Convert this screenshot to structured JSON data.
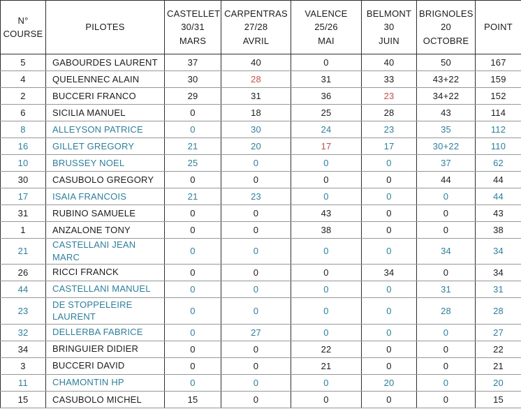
{
  "table": {
    "title": "Championship standings table",
    "columns": [
      {
        "id": "course",
        "label": "N°\nCOURSE"
      },
      {
        "id": "pilotes",
        "label": "PILOTES"
      },
      {
        "id": "castellet",
        "label": "CASTELLET\n30/31\nMARS"
      },
      {
        "id": "carpentras",
        "label": "CARPENTRAS\n27/28\nAVRIL"
      },
      {
        "id": "valence",
        "label": "VALENCE\n25/26\nMAI"
      },
      {
        "id": "belmont",
        "label": "BELMONT\n30\nJUIN"
      },
      {
        "id": "brignoles",
        "label": "BRIGNOLES\n20\nOCTOBRE"
      },
      {
        "id": "point",
        "label": "POINT"
      }
    ],
    "rows": [
      {
        "course": "5",
        "pilot": "GABOURDES LAURENT",
        "scores": [
          "37",
          "40",
          "0",
          "40",
          "50"
        ],
        "point": "167",
        "highlight": false,
        "red_cols": [],
        "tall": false
      },
      {
        "course": "4",
        "pilot": "QUELENNEC ALAIN",
        "scores": [
          "30",
          "28",
          "31",
          "33",
          "43+22"
        ],
        "point": "159",
        "highlight": false,
        "red_cols": [
          1
        ],
        "tall": false
      },
      {
        "course": "2",
        "pilot": "BUCCERI FRANCO",
        "scores": [
          "29",
          "31",
          "36",
          "23",
          "34+22"
        ],
        "point": "152",
        "highlight": false,
        "red_cols": [
          3
        ],
        "tall": false
      },
      {
        "course": "6",
        "pilot": "SICILIA MANUEL",
        "scores": [
          "0",
          "18",
          "25",
          "28",
          "43"
        ],
        "point": "114",
        "highlight": false,
        "red_cols": [],
        "tall": false
      },
      {
        "course": "8",
        "pilot": "ALLEYSON PATRICE",
        "scores": [
          "0",
          "30",
          "24",
          "23",
          "35"
        ],
        "point": "112",
        "highlight": true,
        "red_cols": [],
        "tall": false
      },
      {
        "course": "16",
        "pilot": "GILLET GREGORY",
        "scores": [
          "21",
          "20",
          "17",
          "17",
          "30+22"
        ],
        "point": "110",
        "highlight": true,
        "red_cols": [
          2
        ],
        "tall": false
      },
      {
        "course": "10",
        "pilot": "BRUSSEY NOEL",
        "scores": [
          "25",
          "0",
          "0",
          "0",
          "37"
        ],
        "point": "62",
        "highlight": true,
        "red_cols": [],
        "tall": false
      },
      {
        "course": "30",
        "pilot": "CASUBOLO GREGORY",
        "scores": [
          "0",
          "0",
          "0",
          "0",
          "44"
        ],
        "point": "44",
        "highlight": false,
        "red_cols": [],
        "tall": false
      },
      {
        "course": "17",
        "pilot": "ISAIA FRANCOIS",
        "scores": [
          "21",
          "23",
          "0",
          "0",
          "0"
        ],
        "point": "44",
        "highlight": true,
        "red_cols": [],
        "tall": false
      },
      {
        "course": "31",
        "pilot": "RUBINO SAMUELE",
        "scores": [
          "0",
          "0",
          "43",
          "0",
          "0"
        ],
        "point": "43",
        "highlight": false,
        "red_cols": [],
        "tall": false
      },
      {
        "course": "1",
        "pilot": "ANZALONE TONY",
        "scores": [
          "0",
          "0",
          "38",
          "0",
          "0"
        ],
        "point": "38",
        "highlight": false,
        "red_cols": [],
        "tall": false
      },
      {
        "course": "21",
        "pilot": "CASTELLANI JEAN MARC",
        "scores": [
          "0",
          "0",
          "0",
          "0",
          "34"
        ],
        "point": "34",
        "highlight": true,
        "red_cols": [],
        "tall": false
      },
      {
        "course": "26",
        "pilot": "RICCI FRANCK",
        "scores": [
          "0",
          "0",
          "0",
          "34",
          "0"
        ],
        "point": "34",
        "highlight": false,
        "red_cols": [],
        "tall": false
      },
      {
        "course": "44",
        "pilot": "CASTELLANI MANUEL",
        "scores": [
          "0",
          "0",
          "0",
          "0",
          "31"
        ],
        "point": "31",
        "highlight": true,
        "red_cols": [],
        "tall": false
      },
      {
        "course": "23",
        "pilot": "DE STOPPELEIRE\nLAURENT",
        "scores": [
          "0",
          "0",
          "0",
          "0",
          "28"
        ],
        "point": "28",
        "highlight": true,
        "red_cols": [],
        "tall": true
      },
      {
        "course": "32",
        "pilot": "DELLERBA FABRICE",
        "scores": [
          "0",
          "27",
          "0",
          "0",
          "0"
        ],
        "point": "27",
        "highlight": true,
        "red_cols": [],
        "tall": false
      },
      {
        "course": "34",
        "pilot": "BRINGUIER DIDIER",
        "scores": [
          "0",
          "0",
          "22",
          "0",
          "0"
        ],
        "point": "22",
        "highlight": false,
        "red_cols": [],
        "tall": false
      },
      {
        "course": "3",
        "pilot": "BUCCERI DAVID",
        "scores": [
          "0",
          "0",
          "21",
          "0",
          "0"
        ],
        "point": "21",
        "highlight": false,
        "red_cols": [],
        "tall": false
      },
      {
        "course": "11",
        "pilot": "CHAMONTIN HP",
        "scores": [
          "0",
          "0",
          "0",
          "20",
          "0"
        ],
        "point": "20",
        "highlight": true,
        "red_cols": [],
        "tall": false
      },
      {
        "course": "15",
        "pilot": "CASUBOLO MICHEL",
        "scores": [
          "15",
          "0",
          "0",
          "0",
          "0"
        ],
        "point": "15",
        "highlight": false,
        "red_cols": [],
        "tall": false
      }
    ],
    "colors": {
      "text": "#1c1c1c",
      "highlight_text": "#2e7f9c",
      "dropped_score_text": "#c0504d",
      "border_vertical": "#2e2e2e",
      "border_horizontal": "#969696"
    }
  }
}
